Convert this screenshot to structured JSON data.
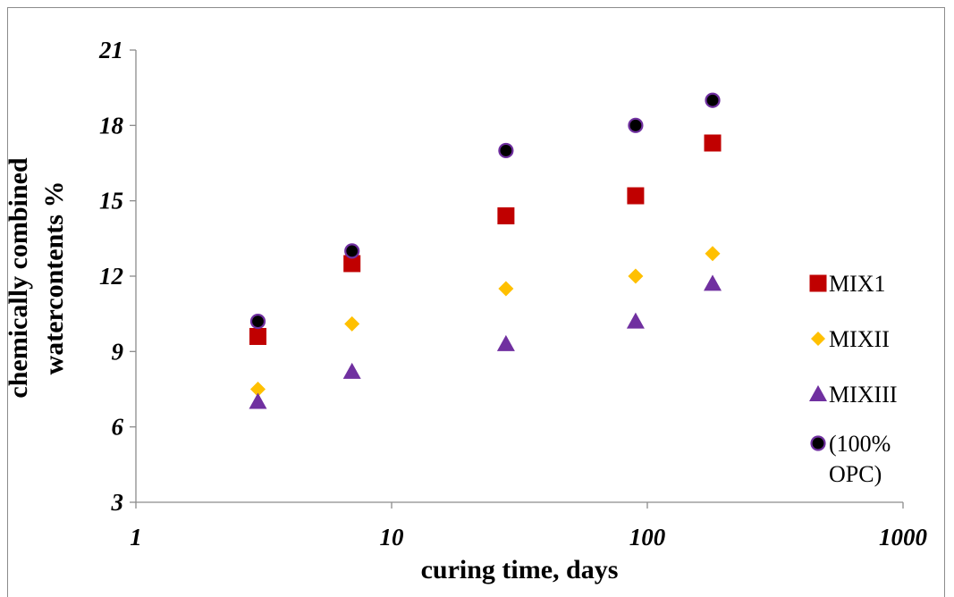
{
  "chart_data": {
    "type": "scatter",
    "title": "",
    "xlabel": "curing time, days",
    "ylabel_lines": [
      "chemically combined",
      "watercontents %"
    ],
    "x_scale": "log",
    "xlim": [
      1,
      1000
    ],
    "ylim": [
      3,
      21
    ],
    "x_ticks": [
      1,
      10,
      100,
      1000
    ],
    "x_tick_labels": [
      "1",
      "10",
      "100",
      "1000"
    ],
    "y_ticks": [
      3,
      6,
      9,
      12,
      15,
      18,
      21
    ],
    "y_tick_labels": [
      "3",
      "6",
      "9",
      "12",
      "15",
      "18",
      "21"
    ],
    "grid": false,
    "legend_position": "right",
    "series": [
      {
        "name": "MIX1",
        "legend_lines": [
          "MIX1"
        ],
        "marker": "square",
        "color": "#c00000",
        "x": [
          3,
          7,
          28,
          90,
          180
        ],
        "y": [
          9.6,
          12.5,
          14.4,
          15.2,
          17.3
        ]
      },
      {
        "name": "MIXII",
        "legend_lines": [
          "MIXII"
        ],
        "marker": "diamond",
        "color": "#ffc000",
        "x": [
          3,
          7,
          28,
          90,
          180
        ],
        "y": [
          7.5,
          10.1,
          11.5,
          12.0,
          12.9
        ]
      },
      {
        "name": "MIXIII",
        "legend_lines": [
          "MIXIII"
        ],
        "marker": "triangle",
        "color": "#7030a0",
        "x": [
          3,
          7,
          28,
          90,
          180
        ],
        "y": [
          7.0,
          8.2,
          9.3,
          10.2,
          11.7
        ]
      },
      {
        "name": "(100% OPC)",
        "legend_lines": [
          "(100%",
          "OPC)"
        ],
        "marker": "circle",
        "color": "#000000",
        "edge_color": "#7030a0",
        "x": [
          3,
          7,
          28,
          90,
          180
        ],
        "y": [
          10.2,
          13.0,
          17.0,
          18.0,
          19.0
        ]
      }
    ]
  }
}
